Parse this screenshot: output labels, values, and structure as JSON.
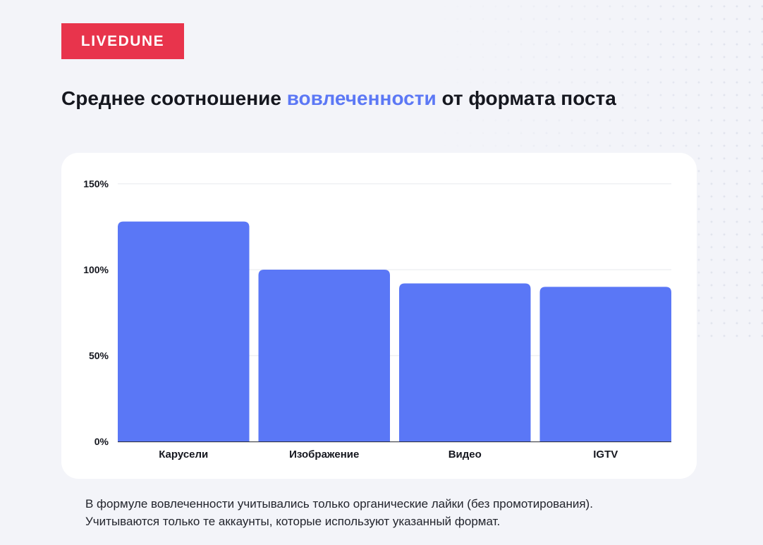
{
  "brand": {
    "name": "LIVEDUNE",
    "color": "#e8344c"
  },
  "title": {
    "prefix": "Среднее соотношение ",
    "highlight": "вовлеченности",
    "suffix": " от формата поста",
    "highlight_color": "#5c78f5"
  },
  "chart_data": {
    "type": "bar",
    "categories": [
      "Карусели",
      "Изображение",
      "Видео",
      "IGTV"
    ],
    "values": [
      128,
      100,
      92,
      90
    ],
    "unit": "%",
    "ylim": [
      0,
      150
    ],
    "yticks": [
      0,
      50,
      100,
      150
    ],
    "ytick_labels": [
      "0%",
      "50%",
      "100%",
      "150%"
    ],
    "grid": true,
    "legend": "none",
    "bar_color": "#5a77f6"
  },
  "footnote": {
    "line1": "В формуле вовлеченности учитывались только органические лайки (без промотирования).",
    "line2": "Учитываются только те аккаунты, которые используют указанный формат."
  }
}
